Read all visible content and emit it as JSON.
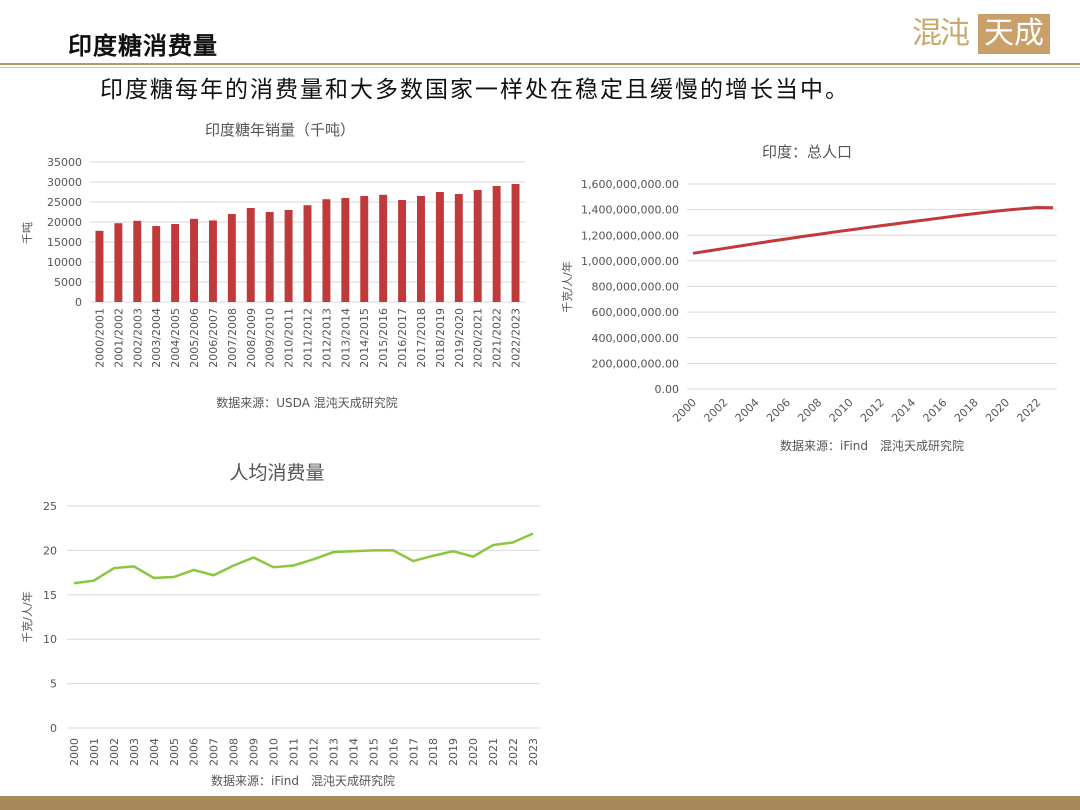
{
  "header": {
    "title": "印度糖消费量",
    "logo_left": "混沌",
    "logo_right": "天成"
  },
  "subtitle": "印度糖每年的消费量和大多数国家一样处在稳定且缓慢的增长当中。",
  "colors": {
    "bar": "#c0393b",
    "line_pop": "#c0393b",
    "line_percap": "#8cc63f",
    "accent": "#b89a6a"
  },
  "chart_data": [
    {
      "type": "bar",
      "title": "印度糖年销量（千吨）",
      "ylabel": "千吨",
      "source": "数据来源：USDA 混沌天成研究院",
      "ylim": [
        0,
        35000
      ],
      "yticks": [
        0,
        5000,
        10000,
        15000,
        20000,
        25000,
        30000,
        35000
      ],
      "categories": [
        "2000/2001",
        "2001/2002",
        "2002/2003",
        "2003/2004",
        "2004/2005",
        "2005/2006",
        "2006/2007",
        "2007/2008",
        "2008/2009",
        "2009/2010",
        "2010/2011",
        "2011/2012",
        "2012/2013",
        "2013/2014",
        "2014/2015",
        "2015/2016",
        "2016/2017",
        "2017/2018",
        "2018/2019",
        "2019/2020",
        "2020/2021",
        "2021/2022",
        "2022/2023"
      ],
      "values": [
        17800,
        19700,
        20300,
        19000,
        19500,
        20800,
        20400,
        22000,
        23500,
        22500,
        23000,
        24200,
        25700,
        26000,
        26500,
        26800,
        25500,
        26500,
        27500,
        27000,
        28000,
        29000,
        29500
      ],
      "grid": true
    },
    {
      "type": "line",
      "title": "印度：总人口",
      "ylabel": "千克/人/年",
      "source": "数据来源：iFind　混沌天成研究院",
      "ylim": [
        0,
        1600000000
      ],
      "yticks": [
        "0.00",
        "200,000,000.00",
        "400,000,000.00",
        "600,000,000.00",
        "800,000,000.00",
        "1,000,000,000.00",
        "1,200,000,000.00",
        "1,400,000,000.00",
        "1,600,000,000.00"
      ],
      "xticks": [
        "2000",
        "2002",
        "2004",
        "2006",
        "2008",
        "2010",
        "2012",
        "2014",
        "2016",
        "2018",
        "2020",
        "2022"
      ],
      "x": [
        2000,
        2001,
        2002,
        2003,
        2004,
        2005,
        2006,
        2007,
        2008,
        2009,
        2010,
        2011,
        2012,
        2013,
        2014,
        2015,
        2016,
        2017,
        2018,
        2019,
        2020,
        2021,
        2022,
        2023
      ],
      "values": [
        1059000000,
        1078000000,
        1097000000,
        1116000000,
        1135000000,
        1154000000,
        1172000000,
        1190000000,
        1207000000,
        1225000000,
        1241000000,
        1258000000,
        1274000000,
        1290000000,
        1306000000,
        1322000000,
        1338000000,
        1354000000,
        1369000000,
        1383000000,
        1396000000,
        1407000000,
        1417000000,
        1415000000
      ],
      "grid": true
    },
    {
      "type": "line",
      "title": "人均消费量",
      "ylabel": "千克/人/年",
      "source": "数据来源：iFind　混沌天成研究院",
      "ylim": [
        0,
        25
      ],
      "yticks": [
        0,
        5,
        10,
        15,
        20,
        25
      ],
      "categories": [
        "2000",
        "2001",
        "2002",
        "2003",
        "2004",
        "2005",
        "2006",
        "2007",
        "2008",
        "2009",
        "2010",
        "2011",
        "2012",
        "2013",
        "2014",
        "2015",
        "2016",
        "2017",
        "2018",
        "2019",
        "2020",
        "2021",
        "2022",
        "2023"
      ],
      "values": [
        16.3,
        16.6,
        18.0,
        18.2,
        16.9,
        17.0,
        17.8,
        17.2,
        18.3,
        19.2,
        18.1,
        18.3,
        19.0,
        19.8,
        19.9,
        20.0,
        20.0,
        18.8,
        19.4,
        19.9,
        19.3,
        20.6,
        20.9,
        21.9
      ],
      "grid": true
    }
  ]
}
